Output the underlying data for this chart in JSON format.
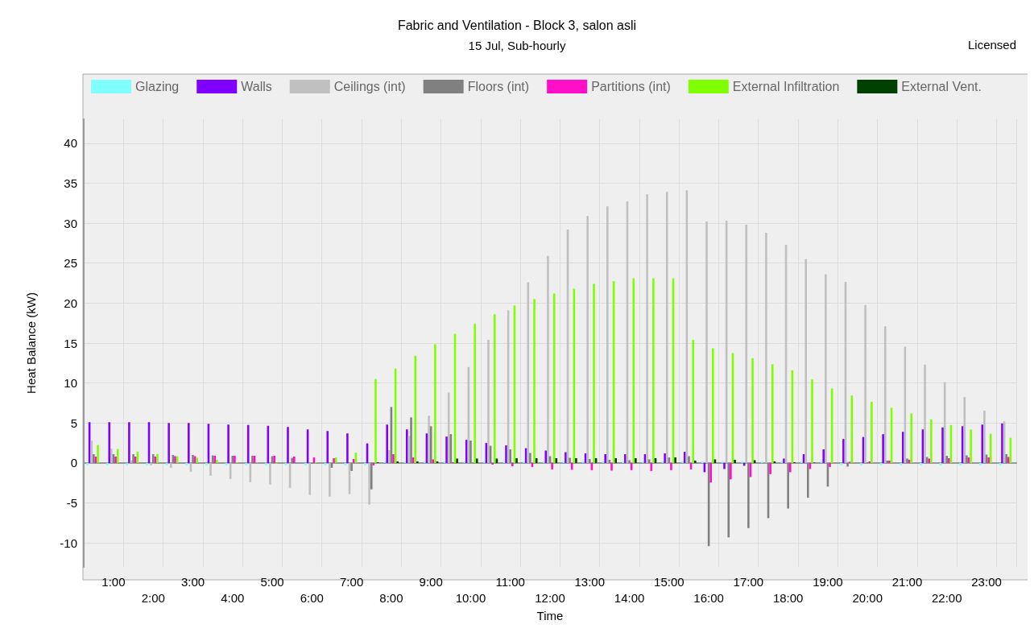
{
  "chart_data": {
    "type": "bar",
    "title": "Fabric and Ventilation - Block 3, salon asli",
    "subtitle": "15 Jul, Sub-hourly",
    "annotations": [
      "Licensed"
    ],
    "xlabel": "Time",
    "ylabel": "Heat Balance (kW)",
    "categories": [
      null,
      "1:00",
      null,
      "2:00",
      null,
      "3:00",
      null,
      "4:00",
      null,
      "5:00",
      null,
      "6:00",
      null,
      "7:00",
      null,
      "8:00",
      null,
      "9:00",
      null,
      "10:00",
      null,
      "11:00",
      null,
      "12:00",
      null,
      "13:00",
      null,
      "14:00",
      null,
      "15:00",
      null,
      "16:00",
      null,
      "17:00",
      null,
      "18:00",
      null,
      "19:00",
      null,
      "20:00",
      null,
      "21:00",
      null,
      "22:00",
      null,
      "23:00",
      null
    ],
    "ylim": [
      -13,
      43
    ],
    "yticks": [
      -10,
      -5,
      0,
      5,
      10,
      15,
      20,
      25,
      30,
      35,
      40
    ],
    "grid": true,
    "legend": "top left",
    "series": [
      {
        "name": "Glazing",
        "color": "#80ffff",
        "values": [
          -0.3,
          -0.3,
          -0.3,
          -0.3,
          -0.3,
          -0.3,
          -0.3,
          -0.3,
          -0.3,
          -0.3,
          -0.3,
          -0.3,
          -0.3,
          -0.3,
          -0.3,
          0.2,
          0.2,
          0.2,
          0.2,
          0.2,
          0.2,
          0.2,
          0.2,
          0.2,
          0.2,
          0.2,
          0.2,
          0.2,
          0.2,
          0.2,
          0.2,
          0.2,
          0.2,
          0.2,
          0.2,
          0.2,
          0.2,
          0.2,
          -0.3,
          -0.3,
          -0.3,
          -0.3,
          -0.3,
          -0.3,
          -0.3,
          -0.3,
          -0.3
        ]
      },
      {
        "name": "Walls",
        "color": "#8000ff",
        "values": [
          5.1,
          5.1,
          5.1,
          5.1,
          5.0,
          5.0,
          4.9,
          4.8,
          4.75,
          4.65,
          4.5,
          4.2,
          4.0,
          3.7,
          2.45,
          4.8,
          4.2,
          3.7,
          3.3,
          2.9,
          2.5,
          2.2,
          1.85,
          1.55,
          1.35,
          1.2,
          1.1,
          1.1,
          1.1,
          1.2,
          1.4,
          -1.15,
          -0.75,
          -0.35,
          0,
          0.55,
          1.1,
          1.7,
          3.0,
          3.25,
          3.6,
          3.9,
          4.2,
          4.45,
          4.6,
          4.8,
          4.95
        ]
      },
      {
        "name": "Ceilings (int)",
        "color": "#c0c0c0",
        "values": [
          2.8,
          1.8,
          0.3,
          -0.3,
          -0.6,
          -1.1,
          -1.6,
          -2.0,
          -2.4,
          -2.7,
          -3.1,
          -4.0,
          -4.2,
          -3.9,
          -5.2,
          1.6,
          3.4,
          5.9,
          8.8,
          12.0,
          15.4,
          19.1,
          22.6,
          25.9,
          29.2,
          30.9,
          32.1,
          32.7,
          33.6,
          33.9,
          34.1,
          30.2,
          30.3,
          29.8,
          28.8,
          27.3,
          25.5,
          23.6,
          22.65,
          19.75,
          17.1,
          14.55,
          12.3,
          10.1,
          8.25,
          6.55,
          5.2
        ]
      },
      {
        "name": "Floors (int)",
        "color": "#808080",
        "values": [
          1.1,
          1.1,
          1.1,
          1.1,
          1.0,
          1.0,
          0.95,
          0.9,
          0.9,
          0.85,
          0.65,
          -0.1,
          -0.6,
          -1.0,
          -3.3,
          7.0,
          5.7,
          4.6,
          3.6,
          2.8,
          2.15,
          1.7,
          1.25,
          0.85,
          0.65,
          0.5,
          0.4,
          0.35,
          0.45,
          0.7,
          0.85,
          -10.4,
          -9.3,
          -8.15,
          -6.9,
          -5.7,
          -4.35,
          -2.95,
          -0.45,
          0.1,
          0.3,
          0.55,
          0.75,
          0.9,
          0.95,
          1.05,
          1.1
        ]
      },
      {
        "name": "Partitions (int)",
        "color": "#ff10c8",
        "values": [
          0.8,
          0.8,
          0.8,
          0.8,
          0.85,
          0.85,
          0.9,
          0.9,
          0.9,
          0.9,
          0.8,
          0.7,
          0.6,
          0.5,
          -0.3,
          1.1,
          0.7,
          0.45,
          0.1,
          0,
          -0.2,
          -0.4,
          -0.5,
          -0.8,
          -0.85,
          -0.9,
          -0.95,
          -0.9,
          -1.0,
          -0.9,
          -0.8,
          -2.45,
          -2.05,
          -1.75,
          -1.4,
          -1.15,
          -0.75,
          -0.5,
          0.15,
          0.2,
          0.3,
          0.4,
          0.55,
          0.6,
          0.7,
          0.7,
          0.75
        ]
      },
      {
        "name": "External Infiltration",
        "color": "#80ff00",
        "values": [
          2.25,
          1.75,
          1.4,
          1.1,
          0.85,
          0.65,
          0.4,
          0.1,
          0.05,
          -0.1,
          0,
          0.1,
          0.7,
          1.3,
          10.5,
          11.8,
          13.4,
          14.85,
          16.15,
          17.4,
          18.6,
          19.7,
          20.5,
          21.2,
          21.8,
          22.4,
          22.75,
          23.1,
          23.1,
          23.1,
          15.4,
          14.35,
          13.75,
          13.1,
          12.35,
          11.6,
          10.45,
          9.3,
          8.45,
          7.65,
          6.9,
          6.2,
          5.45,
          4.75,
          4.2,
          3.65,
          3.15
        ]
      },
      {
        "name": "External Vent.",
        "color": "#004000",
        "values": [
          0,
          0,
          0,
          0,
          0,
          0,
          0,
          0,
          0,
          0,
          0,
          0,
          0,
          0,
          0.1,
          0.2,
          0.2,
          0.2,
          0.55,
          0.55,
          0.55,
          0.6,
          0.6,
          0.6,
          0.6,
          0.6,
          0.6,
          0.6,
          0.6,
          0.7,
          0.3,
          0.45,
          0.4,
          0.35,
          0.2,
          0.1,
          0.05,
          0,
          0,
          0,
          0,
          0,
          0,
          0,
          0,
          0,
          0
        ]
      }
    ]
  }
}
